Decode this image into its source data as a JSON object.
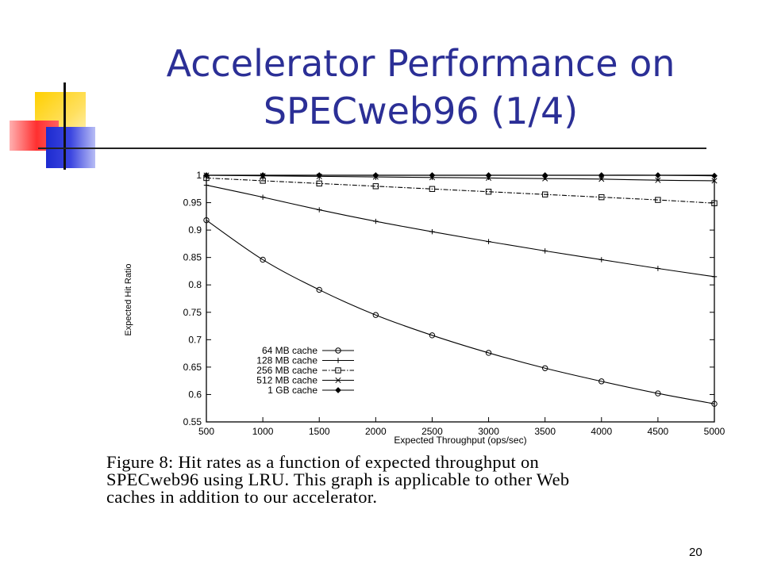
{
  "slide": {
    "title_line1": "Accelerator Performance on",
    "title_line2": "SPECweb96 (1/4)",
    "caption_line1": "Figure 8:  Hit rates as a function of expected throughput on",
    "caption_line2": "SPECweb96 using LRU. This graph is applicable to other Web",
    "caption_line3": "caches in addition to our accelerator.",
    "page_number": "20"
  },
  "chart_data": {
    "type": "line",
    "xlabel": "Expected Throughput (ops/sec)",
    "ylabel": "Expected Hit Ratio",
    "xlim": [
      500,
      5000
    ],
    "ylim": [
      0.55,
      1
    ],
    "x_ticks": [
      500,
      1000,
      1500,
      2000,
      2500,
      3000,
      3500,
      4000,
      4500,
      5000
    ],
    "y_ticks": [
      0.55,
      0.6,
      0.65,
      0.7,
      0.75,
      0.8,
      0.85,
      0.9,
      0.95,
      1
    ],
    "y_tick_labels": [
      "0.55",
      "0.6",
      "0.65",
      "0.7",
      "0.75",
      "0.8",
      "0.85",
      "0.9",
      "0.95",
      "1"
    ],
    "legend_position": "bottom-left",
    "grid": false,
    "x": [
      500,
      1000,
      1500,
      2000,
      2500,
      3000,
      3500,
      4000,
      4500,
      5000
    ],
    "series": [
      {
        "name": "64 MB cache",
        "marker": "circle",
        "dash": "solid",
        "values": [
          0.918,
          0.846,
          0.791,
          0.745,
          0.708,
          0.676,
          0.648,
          0.624,
          0.602,
          0.583
        ]
      },
      {
        "name": "128 MB cache",
        "marker": "plus",
        "dash": "solid",
        "values": [
          0.982,
          0.96,
          0.937,
          0.916,
          0.897,
          0.879,
          0.862,
          0.846,
          0.83,
          0.815
        ]
      },
      {
        "name": "256 MB cache",
        "marker": "square",
        "dash": "dashdot",
        "values": [
          0.995,
          0.99,
          0.985,
          0.98,
          0.975,
          0.97,
          0.965,
          0.96,
          0.955,
          0.949
        ]
      },
      {
        "name": "512 MB cache",
        "marker": "x",
        "dash": "solid",
        "values": [
          1.0,
          0.999,
          0.998,
          0.997,
          0.996,
          0.995,
          0.994,
          0.993,
          0.991,
          0.99
        ]
      },
      {
        "name": "1 GB cache",
        "marker": "diamond",
        "dash": "solid",
        "values": [
          1.0,
          1.0,
          1.0,
          1.0,
          1.0,
          1.0,
          1.0,
          1.0,
          1.0,
          0.999
        ]
      }
    ]
  }
}
